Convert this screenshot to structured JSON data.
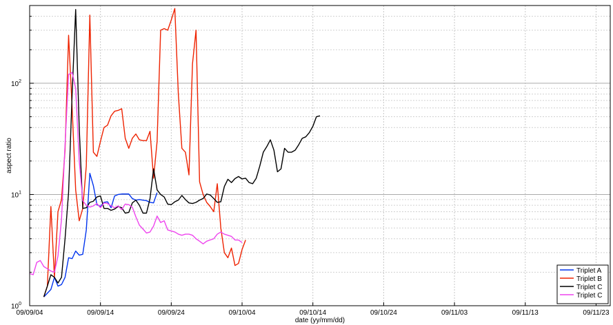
{
  "chart_data": {
    "type": "line",
    "title": "",
    "xlabel": "date (yy/mm/dd)",
    "ylabel": "aspect ratio",
    "yscale": "log",
    "ylim": [
      1,
      500
    ],
    "xlim": [
      "2009-09-04",
      "2009-11-25"
    ],
    "x_ticks": [
      {
        "date": "2009-09-04",
        "label": "09/09/04"
      },
      {
        "date": "2009-09-14",
        "label": "09/09/14"
      },
      {
        "date": "2009-09-24",
        "label": "09/09/24"
      },
      {
        "date": "2009-10-04",
        "label": "09/10/04"
      },
      {
        "date": "2009-10-14",
        "label": "09/10/14"
      },
      {
        "date": "2009-10-24",
        "label": "09/10/24"
      },
      {
        "date": "2009-11-03",
        "label": "09/11/03"
      },
      {
        "date": "2009-11-13",
        "label": "09/11/13"
      },
      {
        "date": "2009-11-23",
        "label": "09/11/23"
      }
    ],
    "y_ticks": [
      {
        "value": 1,
        "base": "10",
        "exp": "0"
      },
      {
        "value": 10,
        "base": "10",
        "exp": "1"
      },
      {
        "value": 100,
        "base": "10",
        "exp": "2"
      }
    ],
    "grid": true,
    "legend": "bottom-right",
    "series": [
      {
        "name": "Triplet A",
        "color": "#0033ee",
        "points": [
          [
            "2009-09-06",
            1.2
          ],
          [
            "2009-09-07",
            1.4
          ],
          [
            "2009-09-07 12:00",
            1.8
          ],
          [
            "2009-09-08",
            1.5
          ],
          [
            "2009-09-08 12:00",
            1.55
          ],
          [
            "2009-09-09",
            1.8
          ],
          [
            "2009-09-09 12:00",
            2.7
          ],
          [
            "2009-09-10",
            2.65
          ],
          [
            "2009-09-10 12:00",
            3.1
          ],
          [
            "2009-09-11",
            2.85
          ],
          [
            "2009-09-11 12:00",
            2.9
          ],
          [
            "2009-09-12",
            4.8
          ],
          [
            "2009-09-12 12:00",
            15.5
          ],
          [
            "2009-09-13",
            12
          ],
          [
            "2009-09-13 12:00",
            8.1
          ],
          [
            "2009-09-14",
            7.8
          ],
          [
            "2009-09-14 12:00",
            8.5
          ],
          [
            "2009-09-15",
            8.6
          ],
          [
            "2009-09-15 12:00",
            7.6
          ],
          [
            "2009-09-16",
            9.7
          ],
          [
            "2009-09-16 12:00",
            10
          ],
          [
            "2009-09-17",
            10.1
          ],
          [
            "2009-09-17 12:00",
            10.1
          ],
          [
            "2009-09-18",
            10.1
          ],
          [
            "2009-09-18 12:00",
            9.2
          ],
          [
            "2009-09-19",
            8.9
          ],
          [
            "2009-09-19 12:00",
            9
          ],
          [
            "2009-09-20",
            8.9
          ],
          [
            "2009-09-20 12:00",
            8.8
          ],
          [
            "2009-09-21",
            8.5
          ],
          [
            "2009-09-21 12:00",
            8.4
          ],
          [
            "2009-09-22",
            10.4
          ]
        ]
      },
      {
        "name": "Triplet B",
        "color": "#ee2200",
        "points": [
          [
            "2009-09-06",
            1.2
          ],
          [
            "2009-09-06 12:00",
            1.5
          ],
          [
            "2009-09-07",
            7.8
          ],
          [
            "2009-09-07 12:00",
            1.8
          ],
          [
            "2009-09-08",
            7
          ],
          [
            "2009-09-08 12:00",
            9
          ],
          [
            "2009-09-09",
            25
          ],
          [
            "2009-09-09 12:00",
            270
          ],
          [
            "2009-09-10",
            60
          ],
          [
            "2009-09-10 12:00",
            11
          ],
          [
            "2009-09-11",
            5.8
          ],
          [
            "2009-09-11 12:00",
            7.5
          ],
          [
            "2009-09-12",
            18
          ],
          [
            "2009-09-12 12:00",
            410
          ],
          [
            "2009-09-13",
            24
          ],
          [
            "2009-09-13 12:00",
            22
          ],
          [
            "2009-09-14",
            30
          ],
          [
            "2009-09-14 12:00",
            40
          ],
          [
            "2009-09-15",
            42
          ],
          [
            "2009-09-15 12:00",
            51
          ],
          [
            "2009-09-16",
            56
          ],
          [
            "2009-09-16 12:00",
            57
          ],
          [
            "2009-09-17",
            59
          ],
          [
            "2009-09-17 12:00",
            32
          ],
          [
            "2009-09-18",
            26
          ],
          [
            "2009-09-18 12:00",
            32
          ],
          [
            "2009-09-19",
            35
          ],
          [
            "2009-09-19 12:00",
            31
          ],
          [
            "2009-09-20",
            30.5
          ],
          [
            "2009-09-20 12:00",
            30.5
          ],
          [
            "2009-09-21",
            37
          ],
          [
            "2009-09-21 12:00",
            14
          ],
          [
            "2009-09-22",
            30
          ],
          [
            "2009-09-22 12:00",
            300
          ],
          [
            "2009-09-23",
            310
          ],
          [
            "2009-09-23 12:00",
            300
          ],
          [
            "2009-09-24",
            370
          ],
          [
            "2009-09-24 12:00",
            470
          ],
          [
            "2009-09-25",
            80
          ],
          [
            "2009-09-25 12:00",
            26
          ],
          [
            "2009-09-26",
            24
          ],
          [
            "2009-09-26 12:00",
            15
          ],
          [
            "2009-09-27",
            150
          ],
          [
            "2009-09-27 12:00",
            300
          ],
          [
            "2009-09-28",
            13
          ],
          [
            "2009-09-28 12:00",
            10
          ],
          [
            "2009-09-29",
            8.5
          ],
          [
            "2009-09-29 12:00",
            7.8
          ],
          [
            "2009-09-30",
            7
          ],
          [
            "2009-09-30 12:00",
            12.5
          ],
          [
            "2009-10-01",
            5
          ],
          [
            "2009-10-01 12:00",
            3
          ],
          [
            "2009-10-02",
            2.7
          ],
          [
            "2009-10-02 12:00",
            3.3
          ],
          [
            "2009-10-03",
            2.3
          ],
          [
            "2009-10-03 12:00",
            2.4
          ],
          [
            "2009-10-04",
            3.2
          ],
          [
            "2009-10-04 12:00",
            3.9
          ]
        ]
      },
      {
        "name": "Triplet C",
        "color": "#000000",
        "points": [
          [
            "2009-09-06",
            1.2
          ],
          [
            "2009-09-06 12:00",
            1.5
          ],
          [
            "2009-09-07",
            1.9
          ],
          [
            "2009-09-07 12:00",
            1.8
          ],
          [
            "2009-09-08",
            1.6
          ],
          [
            "2009-09-08 12:00",
            1.8
          ],
          [
            "2009-09-09",
            4
          ],
          [
            "2009-09-09 12:00",
            10.5
          ],
          [
            "2009-09-10",
            80
          ],
          [
            "2009-09-10 12:00",
            460
          ],
          [
            "2009-09-11",
            40
          ],
          [
            "2009-09-11 12:00",
            7.5
          ],
          [
            "2009-09-12",
            7.6
          ],
          [
            "2009-09-12 12:00",
            8.5
          ],
          [
            "2009-09-13",
            8.7
          ],
          [
            "2009-09-13 12:00",
            9.5
          ],
          [
            "2009-09-14",
            9.7
          ],
          [
            "2009-09-14 12:00",
            7.5
          ],
          [
            "2009-09-15",
            7.5
          ],
          [
            "2009-09-15 12:00",
            7.2
          ],
          [
            "2009-09-16",
            7.4
          ],
          [
            "2009-09-16 12:00",
            7.8
          ],
          [
            "2009-09-17",
            7.6
          ],
          [
            "2009-09-17 12:00",
            6.8
          ],
          [
            "2009-09-18",
            6.9
          ],
          [
            "2009-09-18 12:00",
            8.4
          ],
          [
            "2009-09-19",
            8.9
          ],
          [
            "2009-09-19 12:00",
            8
          ],
          [
            "2009-09-20",
            6.8
          ],
          [
            "2009-09-20 12:00",
            6.8
          ],
          [
            "2009-09-21",
            9.2
          ],
          [
            "2009-09-21 12:00",
            17
          ],
          [
            "2009-09-22",
            11
          ],
          [
            "2009-09-22 12:00",
            10
          ],
          [
            "2009-09-23",
            9.5
          ],
          [
            "2009-09-23 12:00",
            8.2
          ],
          [
            "2009-09-24",
            8.1
          ],
          [
            "2009-09-24 12:00",
            8.6
          ],
          [
            "2009-09-25",
            8.9
          ],
          [
            "2009-09-25 12:00",
            9.8
          ],
          [
            "2009-09-26",
            9
          ],
          [
            "2009-09-26 12:00",
            8.4
          ],
          [
            "2009-09-27",
            8.3
          ],
          [
            "2009-09-27 12:00",
            8.5
          ],
          [
            "2009-09-28",
            8.9
          ],
          [
            "2009-09-28 12:00",
            9.2
          ],
          [
            "2009-09-29",
            10.1
          ],
          [
            "2009-09-29 12:00",
            9.9
          ],
          [
            "2009-09-30",
            9.2
          ],
          [
            "2009-09-30 12:00",
            8.5
          ],
          [
            "2009-10-01",
            8.6
          ],
          [
            "2009-10-01 12:00",
            11.8
          ],
          [
            "2009-10-02",
            13.7
          ],
          [
            "2009-10-02 12:00",
            12.8
          ],
          [
            "2009-10-03",
            13.9
          ],
          [
            "2009-10-03 12:00",
            14.5
          ],
          [
            "2009-10-04",
            13.8
          ],
          [
            "2009-10-04 12:00",
            14
          ],
          [
            "2009-10-05",
            12.8
          ],
          [
            "2009-10-05 12:00",
            12.5
          ],
          [
            "2009-10-06",
            14
          ],
          [
            "2009-10-06 12:00",
            18
          ],
          [
            "2009-10-07",
            24
          ],
          [
            "2009-10-07 12:00",
            27
          ],
          [
            "2009-10-08",
            31
          ],
          [
            "2009-10-08 12:00",
            25
          ],
          [
            "2009-10-09",
            16
          ],
          [
            "2009-10-09 12:00",
            17
          ],
          [
            "2009-10-10",
            26
          ],
          [
            "2009-10-10 12:00",
            24
          ],
          [
            "2009-10-11",
            24
          ],
          [
            "2009-10-11 12:00",
            25
          ],
          [
            "2009-10-12",
            28
          ],
          [
            "2009-10-12 12:00",
            32
          ],
          [
            "2009-10-13",
            33
          ],
          [
            "2009-10-13 12:00",
            36
          ],
          [
            "2009-10-14",
            41
          ],
          [
            "2009-10-14 12:00",
            50
          ],
          [
            "2009-10-15",
            51
          ]
        ]
      },
      {
        "name": "Triplet C",
        "color": "#ee44ee",
        "points": [
          [
            "2009-09-04",
            1.95
          ],
          [
            "2009-09-04 12:00",
            1.9
          ],
          [
            "2009-09-05",
            2.45
          ],
          [
            "2009-09-05 12:00",
            2.55
          ],
          [
            "2009-09-06",
            2.25
          ],
          [
            "2009-09-06 12:00",
            2.15
          ],
          [
            "2009-09-07",
            2.05
          ],
          [
            "2009-09-07 12:00",
            2.0
          ],
          [
            "2009-09-08",
            2.8
          ],
          [
            "2009-09-08 12:00",
            6
          ],
          [
            "2009-09-09",
            28
          ],
          [
            "2009-09-09 12:00",
            120
          ],
          [
            "2009-09-10",
            125
          ],
          [
            "2009-09-10 12:00",
            90
          ],
          [
            "2009-09-11",
            20
          ],
          [
            "2009-09-11 12:00",
            8.8
          ],
          [
            "2009-09-12",
            8
          ],
          [
            "2009-09-12 12:00",
            7.7
          ],
          [
            "2009-09-13",
            7.9
          ],
          [
            "2009-09-13 12:00",
            8.3
          ],
          [
            "2009-09-14",
            7.6
          ],
          [
            "2009-09-14 12:00",
            8.4
          ],
          [
            "2009-09-15",
            8.3
          ],
          [
            "2009-09-15 12:00",
            7.9
          ],
          [
            "2009-09-16",
            7.6
          ],
          [
            "2009-09-16 12:00",
            7.9
          ],
          [
            "2009-09-17",
            7.3
          ],
          [
            "2009-09-17 12:00",
            8.2
          ],
          [
            "2009-09-18",
            8.1
          ],
          [
            "2009-09-18 12:00",
            7.7
          ],
          [
            "2009-09-19",
            6.3
          ],
          [
            "2009-09-19 12:00",
            5.3
          ],
          [
            "2009-09-20",
            4.9
          ],
          [
            "2009-09-20 12:00",
            4.5
          ],
          [
            "2009-09-21",
            4.6
          ],
          [
            "2009-09-21 12:00",
            5.2
          ],
          [
            "2009-09-22",
            6.4
          ],
          [
            "2009-09-22 12:00",
            5.6
          ],
          [
            "2009-09-23",
            5.8
          ],
          [
            "2009-09-23 12:00",
            4.8
          ],
          [
            "2009-09-24",
            4.7
          ],
          [
            "2009-09-24 12:00",
            4.6
          ],
          [
            "2009-09-25",
            4.4
          ],
          [
            "2009-09-25 12:00",
            4.3
          ],
          [
            "2009-09-26",
            4.4
          ],
          [
            "2009-09-26 12:00",
            4.4
          ],
          [
            "2009-09-27",
            4.3
          ],
          [
            "2009-09-27 12:00",
            4.0
          ],
          [
            "2009-09-28",
            3.8
          ],
          [
            "2009-09-28 12:00",
            3.6
          ],
          [
            "2009-09-29",
            3.8
          ],
          [
            "2009-09-29 12:00",
            3.9
          ],
          [
            "2009-09-30",
            4.0
          ],
          [
            "2009-09-30 12:00",
            4.4
          ],
          [
            "2009-10-01",
            4.6
          ],
          [
            "2009-10-01 12:00",
            4.4
          ],
          [
            "2009-10-02",
            4.3
          ],
          [
            "2009-10-02 12:00",
            4.2
          ],
          [
            "2009-10-03",
            3.9
          ],
          [
            "2009-10-03 12:00",
            3.9
          ],
          [
            "2009-10-04",
            3.7
          ]
        ]
      }
    ]
  }
}
